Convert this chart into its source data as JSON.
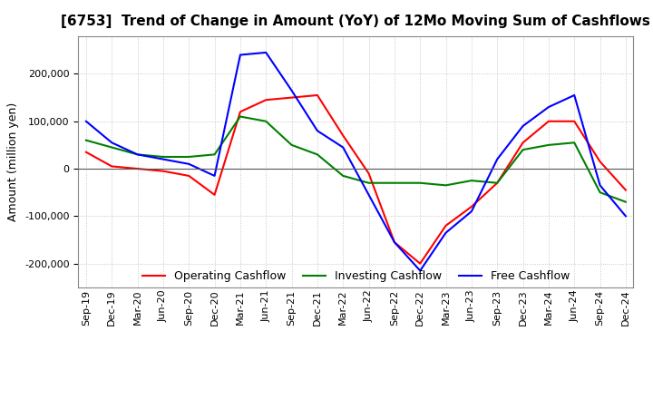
{
  "title": "[6753]  Trend of Change in Amount (YoY) of 12Mo Moving Sum of Cashflows",
  "ylabel": "Amount (million yen)",
  "ylim": [
    -250000,
    280000
  ],
  "yticks": [
    -200000,
    -100000,
    0,
    100000,
    200000
  ],
  "x_labels": [
    "Sep-19",
    "Dec-19",
    "Mar-20",
    "Jun-20",
    "Sep-20",
    "Dec-20",
    "Mar-21",
    "Jun-21",
    "Sep-21",
    "Dec-21",
    "Mar-22",
    "Jun-22",
    "Sep-22",
    "Dec-22",
    "Mar-23",
    "Jun-23",
    "Sep-23",
    "Dec-23",
    "Mar-24",
    "Jun-24",
    "Sep-24",
    "Dec-24"
  ],
  "operating": [
    35000,
    5000,
    0,
    -5000,
    -15000,
    -55000,
    120000,
    145000,
    150000,
    155000,
    70000,
    -10000,
    -155000,
    -200000,
    -120000,
    -80000,
    -30000,
    55000,
    100000,
    100000,
    15000,
    -45000
  ],
  "investing": [
    60000,
    45000,
    30000,
    25000,
    25000,
    30000,
    110000,
    100000,
    50000,
    30000,
    -15000,
    -30000,
    -30000,
    -30000,
    -35000,
    -25000,
    -30000,
    40000,
    50000,
    55000,
    -50000,
    -70000
  ],
  "free": [
    100000,
    55000,
    30000,
    20000,
    10000,
    -15000,
    240000,
    245000,
    165000,
    80000,
    45000,
    -55000,
    -155000,
    -215000,
    -135000,
    -90000,
    20000,
    90000,
    130000,
    155000,
    -35000,
    -100000
  ],
  "op_color": "#ff0000",
  "inv_color": "#008000",
  "free_color": "#0000ff",
  "bg_color": "#ffffff",
  "grid_color": "#bbbbbb",
  "title_fontsize": 11,
  "label_fontsize": 9,
  "tick_fontsize": 8
}
